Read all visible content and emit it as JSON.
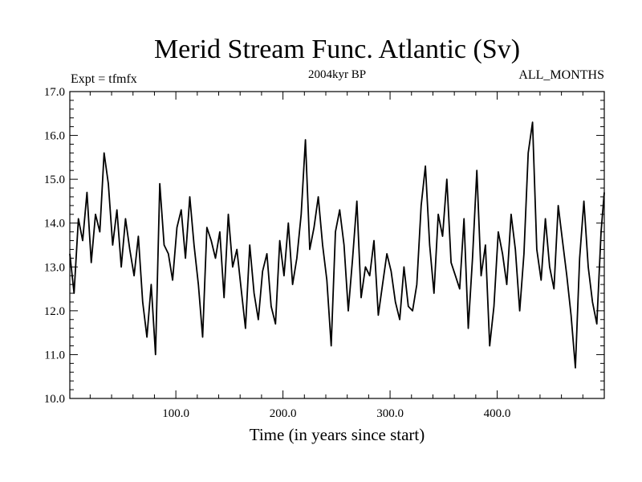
{
  "chart_data": {
    "type": "line",
    "title": "Merid Stream Func. Atlantic (Sv)",
    "subtitle_left": "Expt = tfmfx",
    "subtitle_center": "2004kyr BP",
    "subtitle_right": "ALL_MONTHS",
    "xlabel": "Time (in years since start)",
    "ylabel": "",
    "xlim": [
      1,
      500
    ],
    "ylim": [
      10.0,
      17.0
    ],
    "xticks": [
      100,
      200,
      300,
      400
    ],
    "xtick_labels": [
      "100.0",
      "200.0",
      "300.0",
      "400.0"
    ],
    "yticks": [
      10,
      11,
      12,
      13,
      14,
      15,
      16,
      17
    ],
    "ytick_labels": [
      "10.0",
      "11.0",
      "12.0",
      "13.0",
      "14.0",
      "15.0",
      "16.0",
      "17.0"
    ],
    "series": [
      {
        "name": "Merid Stream Func. Atlantic",
        "color": "#000000",
        "x": [
          1,
          5,
          9,
          13,
          17,
          21,
          25,
          29,
          33,
          37,
          41,
          45,
          49,
          53,
          57,
          61,
          65,
          69,
          73,
          77,
          81,
          85,
          89,
          93,
          97,
          101,
          105,
          109,
          113,
          117,
          121,
          125,
          129,
          133,
          137,
          141,
          145,
          149,
          153,
          157,
          161,
          165,
          169,
          173,
          177,
          181,
          185,
          189,
          193,
          197,
          201,
          205,
          209,
          213,
          217,
          221,
          225,
          229,
          233,
          237,
          241,
          245,
          249,
          253,
          257,
          261,
          265,
          269,
          273,
          277,
          281,
          285,
          289,
          293,
          297,
          301,
          305,
          309,
          313,
          317,
          321,
          325,
          329,
          333,
          337,
          341,
          345,
          349,
          353,
          357,
          361,
          365,
          369,
          373,
          377,
          381,
          385,
          389,
          393,
          397,
          401,
          405,
          409,
          413,
          417,
          421,
          425,
          429,
          433,
          437,
          441,
          445,
          449,
          453,
          457,
          461,
          465,
          469,
          473,
          477,
          481,
          485,
          489,
          493,
          497,
          500
        ],
        "y": [
          13.3,
          12.4,
          14.1,
          13.6,
          14.7,
          13.1,
          14.2,
          13.8,
          15.6,
          14.9,
          13.5,
          14.3,
          13.0,
          14.1,
          13.4,
          12.8,
          13.7,
          12.2,
          11.4,
          12.6,
          11.0,
          14.9,
          13.5,
          13.3,
          12.7,
          13.9,
          14.3,
          13.2,
          14.6,
          13.5,
          12.6,
          11.4,
          13.9,
          13.6,
          13.2,
          13.8,
          12.3,
          14.2,
          13.0,
          13.4,
          12.5,
          11.6,
          13.5,
          12.4,
          11.8,
          12.9,
          13.3,
          12.1,
          11.7,
          13.6,
          12.8,
          14.0,
          12.6,
          13.2,
          14.2,
          15.9,
          13.4,
          13.9,
          14.6,
          13.5,
          12.7,
          11.2,
          13.8,
          14.3,
          13.5,
          12.0,
          13.2,
          14.5,
          12.3,
          13.0,
          12.8,
          13.6,
          11.9,
          12.6,
          13.3,
          12.9,
          12.2,
          11.8,
          13.0,
          12.1,
          12.0,
          12.6,
          14.4,
          15.3,
          13.5,
          12.4,
          14.2,
          13.7,
          15.0,
          13.1,
          12.8,
          12.5,
          14.1,
          11.6,
          13.2,
          15.2,
          12.8,
          13.5,
          11.2,
          12.1,
          13.8,
          13.3,
          12.6,
          14.2,
          13.4,
          12.0,
          13.3,
          15.6,
          16.3,
          13.4,
          12.7,
          14.1,
          13.0,
          12.5,
          14.4,
          13.6,
          12.8,
          11.9,
          10.7,
          13.2,
          14.5,
          13.0,
          12.2,
          11.7,
          13.8,
          14.7
        ]
      }
    ]
  }
}
